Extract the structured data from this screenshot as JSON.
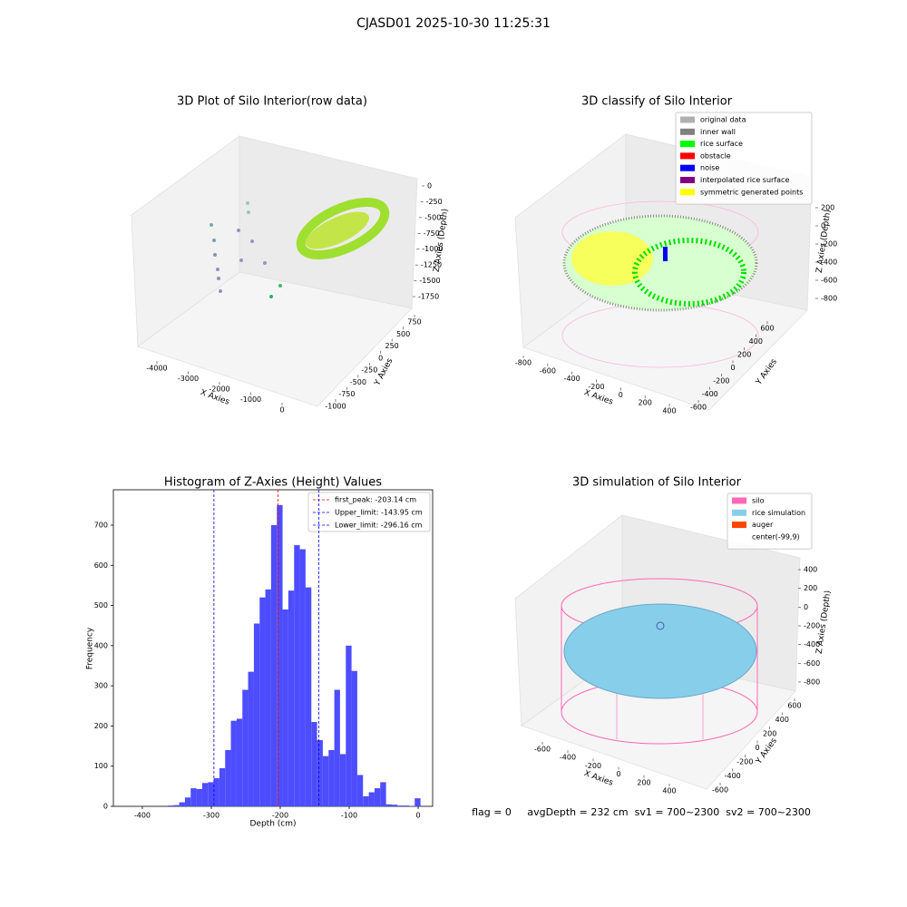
{
  "title": "CJASD01 2025-10-30 11:25:31",
  "chart_data": [
    {
      "type": "scatter3d",
      "title": "3D Plot of Silo Interior(row data)",
      "xlabel": "X Axies",
      "ylabel": "Y Axies",
      "zlabel": "Z Axies (Depth)",
      "xlim": [
        -4500,
        300
      ],
      "xticks": [
        -4000,
        -3000,
        -2000,
        -1000,
        0
      ],
      "ylim": [
        -1100,
        850
      ],
      "yticks": [
        -1000,
        -750,
        -500,
        -250,
        0,
        250,
        500,
        750
      ],
      "zlim": [
        -1900,
        100
      ],
      "zticks": [
        -1750,
        -1500,
        -1250,
        -1000,
        -750,
        -500,
        -250,
        0
      ]
    },
    {
      "type": "scatter3d",
      "title": "3D classify of Silo Interior",
      "xlabel": "X Axies",
      "ylabel": "Y Axies",
      "zlabel": "Z Axies (Depth)",
      "xlim": [
        -900,
        500
      ],
      "xticks": [
        -800,
        -600,
        -400,
        -200,
        0,
        200,
        400
      ],
      "ylim": [
        -700,
        700
      ],
      "yticks": [
        -600,
        -400,
        -200,
        0,
        200,
        400,
        600
      ],
      "zlim": [
        -900,
        300
      ],
      "zticks": [
        -800,
        -600,
        -400,
        -200,
        0,
        200
      ],
      "legend": [
        {
          "name": "original data",
          "color": "#b0b0b0"
        },
        {
          "name": "inner wall",
          "color": "#808080"
        },
        {
          "name": "rice surface",
          "color": "#00ff00"
        },
        {
          "name": "obstacle",
          "color": "#ff0000"
        },
        {
          "name": "noise",
          "color": "#0000ff"
        },
        {
          "name": "interpolated rice surface",
          "color": "#800080"
        },
        {
          "name": "symmetric generated points",
          "color": "#ffff00"
        }
      ]
    },
    {
      "type": "histogram",
      "title": "Histogram of Z-Axies (Height) Values",
      "xlabel": "Depth (cm)",
      "ylabel": "Frequency",
      "color": "#4d4dff",
      "xlim": [
        -442,
        21
      ],
      "xticks": [
        -400,
        -300,
        -200,
        -100,
        0
      ],
      "ylim": [
        0,
        788
      ],
      "yticks": [
        0,
        100,
        200,
        300,
        400,
        500,
        600,
        700
      ],
      "bins": [
        -363.2,
        -354.9,
        -346.5,
        -338.2,
        -329.9,
        -321.5,
        -313.2,
        -304.9,
        -296.6,
        -288.2,
        -279.9,
        -271.6,
        -263.2,
        -254.9,
        -246.6,
        -238.2,
        -229.9,
        -221.6,
        -213.3,
        -204.9,
        -196.6,
        -188.3,
        -179.9,
        -171.6,
        -163.3,
        -154.9,
        -146.6,
        -138.3,
        -129.9,
        -121.6,
        -113.3,
        -104.9,
        -96.6,
        -88.3,
        -80.0,
        -71.6,
        -63.3,
        -55.0,
        -46.6,
        -38.3,
        -30.0,
        -21.6,
        -13.3,
        -5.0,
        3.4
      ],
      "values": [
        2,
        3,
        10,
        22,
        45,
        43,
        58,
        60,
        70,
        95,
        140,
        213,
        218,
        290,
        335,
        455,
        520,
        540,
        700,
        750,
        490,
        537,
        650,
        640,
        545,
        210,
        165,
        125,
        140,
        290,
        130,
        400,
        337,
        78,
        25,
        35,
        45,
        60,
        5,
        4,
        2,
        2,
        1,
        20
      ],
      "annotations": [
        {
          "value": -203.14,
          "label": "first_peak: -203.14 cm",
          "color": "#ff0000"
        },
        {
          "value": -143.95,
          "label": "Upper_limit: -143.95 cm",
          "color": "#0000ff"
        },
        {
          "value": -296.16,
          "label": "Lower_limit: -296.16 cm",
          "color": "#0000ff"
        }
      ]
    },
    {
      "type": "surface3d",
      "title": "3D simulation of Silo Interior",
      "xlabel": "X Axies",
      "ylabel": "Y Axies",
      "zlabel": "Z Axies (Depth)",
      "xlim": [
        -700,
        500
      ],
      "xticks": [
        -600,
        -400,
        -200,
        0,
        200,
        400
      ],
      "ylim": [
        -700,
        700
      ],
      "yticks": [
        -600,
        -400,
        -200,
        0,
        200,
        400,
        600
      ],
      "zlim": [
        -900,
        500
      ],
      "zticks": [
        -800,
        -600,
        -400,
        -200,
        0,
        200,
        400
      ],
      "legend": [
        {
          "name": "silo",
          "color": "#ff69b4"
        },
        {
          "name": "rice simulation",
          "color": "#87ceeb"
        },
        {
          "name": "auger",
          "color": "#ff4500"
        },
        {
          "name": "center(-99,9)",
          "color": "#ffffff"
        }
      ],
      "footer": "flag = 0     avgDepth = 232 cm  sv1 = 700~2300  sv2 = 700~2300"
    }
  ]
}
